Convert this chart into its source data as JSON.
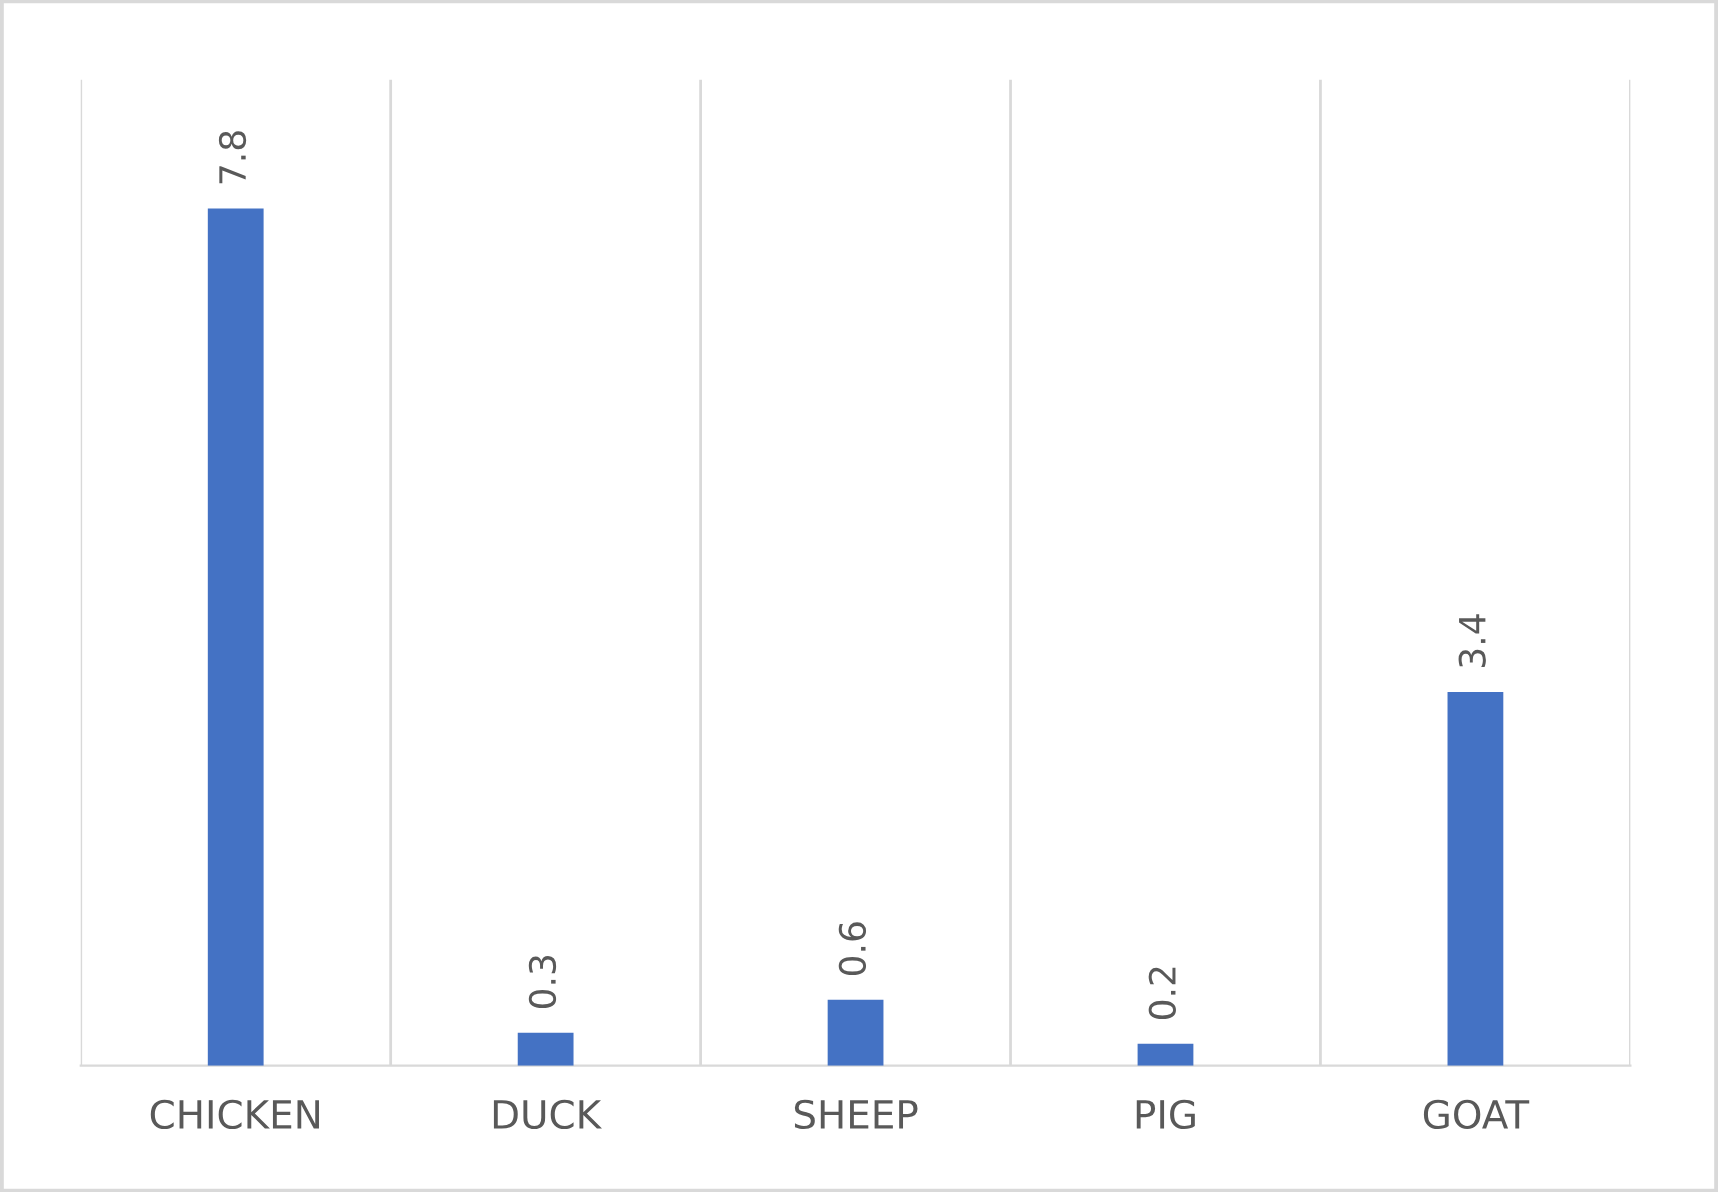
{
  "chart_data": {
    "type": "bar",
    "categories": [
      "CHICKEN",
      "DUCK",
      "SHEEP",
      "PIG",
      "GOAT"
    ],
    "values": [
      7.8,
      0.3,
      0.6,
      0.2,
      3.4
    ],
    "color": "#4472c4",
    "data_labels": true,
    "grid": "x"
  }
}
